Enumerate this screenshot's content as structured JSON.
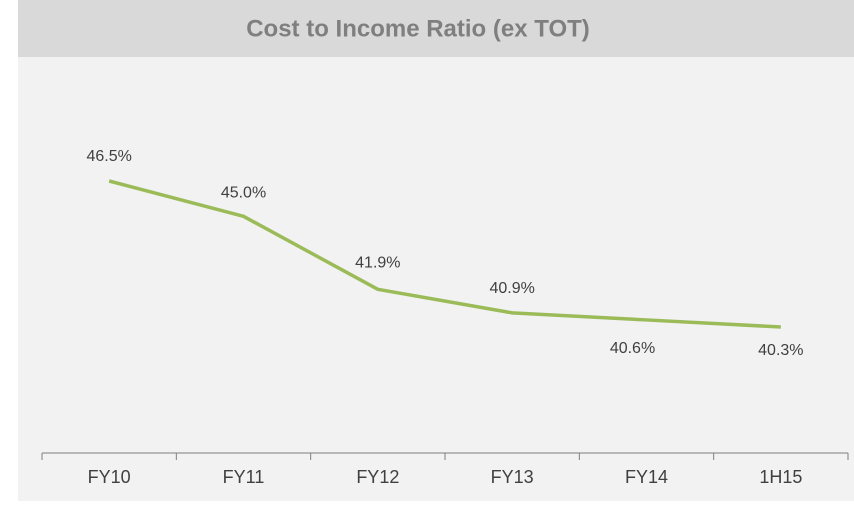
{
  "chart_data": {
    "type": "line",
    "title": "Cost to Income Ratio (ex TOT)",
    "categories": [
      "FY10",
      "FY11",
      "FY12",
      "FY13",
      "FY14",
      "1H15"
    ],
    "series": [
      {
        "color": "#9bbb59",
        "values": [
          46.5,
          45.0,
          41.9,
          40.9,
          40.6,
          40.3
        ],
        "value_labels": [
          "46.5%",
          "45.0%",
          "41.9%",
          "40.9%",
          "40.6%",
          "40.3%"
        ]
      }
    ]
  }
}
